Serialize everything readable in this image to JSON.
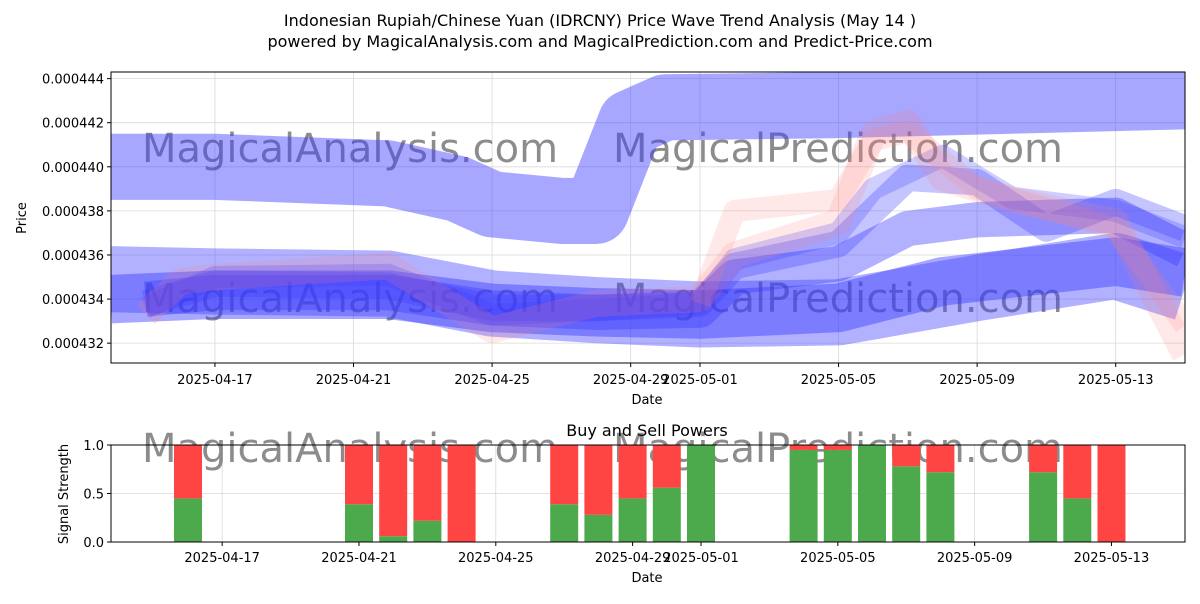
{
  "title_line1": "Indonesian Rupiah/Chinese Yuan (IDRCNY) Price Wave Trend Analysis (May 14 )",
  "title_line2": "powered by MagicalAnalysis.com and MagicalPrediction.com and Predict-Price.com",
  "watermarks": [
    "MagicalAnalysis.com",
    "MagicalPrediction.com"
  ],
  "colors": {
    "bands": "#3b3bff",
    "prediction": "#ff8080",
    "buy": "#4caa4c",
    "sell": "#ff4444",
    "grid": "#d9d9d9"
  },
  "chart_data": [
    {
      "type": "area",
      "title": "",
      "xlabel": "Date",
      "ylabel": "Price",
      "x_ticks": [
        "2025-04-17",
        "2025-04-21",
        "2025-04-25",
        "2025-04-29",
        "2025-05-01",
        "2025-05-05",
        "2025-05-09",
        "2025-05-13"
      ],
      "y_ticks": [
        "0.000432",
        "0.000434",
        "0.000436",
        "0.000438",
        "0.000440",
        "0.000442",
        "0.000444"
      ],
      "ylim": [
        0.0004311,
        0.0004443
      ],
      "xlim": [
        "2025-04-14",
        "2025-05-15"
      ],
      "grid": true,
      "series": [
        {
          "color": "blue",
          "opacity": 0.45,
          "width": 3e-06,
          "x": [
            "2025-04-14",
            "2025-04-17",
            "2025-04-22",
            "2025-04-24",
            "2025-04-25",
            "2025-04-27",
            "2025-04-28",
            "2025-04-29",
            "2025-04-30",
            "2025-05-05",
            "2025-05-15"
          ],
          "y": [
            0.00044,
            0.00044,
            0.0004397,
            0.000439,
            0.0004383,
            0.000438,
            0.000438,
            0.000442,
            0.0004427,
            0.0004428,
            0.0004432
          ]
        },
        {
          "color": "blue",
          "opacity": 0.4,
          "width": 3e-06,
          "x": [
            "2025-04-14",
            "2025-04-17",
            "2025-04-22",
            "2025-04-25",
            "2025-04-28",
            "2025-05-01",
            "2025-05-05",
            "2025-05-09",
            "2025-05-13",
            "2025-05-15"
          ],
          "y": [
            0.0004349,
            0.0004348,
            0.0004347,
            0.0004338,
            0.0004335,
            0.0004333,
            0.0004334,
            0.0004345,
            0.0004355,
            0.0004345
          ]
        },
        {
          "color": "blue",
          "opacity": 0.45,
          "width": 2.2e-06,
          "x": [
            "2025-04-14",
            "2025-04-17",
            "2025-04-22",
            "2025-04-25",
            "2025-04-28",
            "2025-05-01",
            "2025-05-05",
            "2025-05-08",
            "2025-05-13",
            "2025-05-15"
          ],
          "y": [
            0.000434,
            0.0004342,
            0.0004342,
            0.0004336,
            0.0004334,
            0.0004333,
            0.0004336,
            0.0004348,
            0.0004357,
            0.0004352
          ]
        },
        {
          "color": "blue",
          "opacity": 0.4,
          "width": 1.6e-06,
          "x": [
            "2025-04-15",
            "2025-04-17",
            "2025-04-22",
            "2025-04-25",
            "2025-04-28",
            "2025-05-01",
            "2025-05-02",
            "2025-05-05",
            "2025-05-07",
            "2025-05-09",
            "2025-05-13",
            "2025-05-15"
          ],
          "y": [
            0.000434,
            0.0004343,
            0.0004343,
            0.0004336,
            0.0004334,
            0.0004335,
            0.000435,
            0.0004356,
            0.0004372,
            0.0004376,
            0.0004378,
            0.0004362
          ]
        },
        {
          "color": "blue",
          "opacity": 0.3,
          "width": 1.2e-06,
          "x": [
            "2025-04-15",
            "2025-04-17",
            "2025-04-22",
            "2025-04-25",
            "2025-04-28",
            "2025-05-01",
            "2025-05-02",
            "2025-05-05",
            "2025-05-07",
            "2025-05-09",
            "2025-05-11",
            "2025-05-13",
            "2025-05-15"
          ],
          "y": [
            0.0004338,
            0.0004347,
            0.0004346,
            0.0004336,
            0.0004336,
            0.0004338,
            0.0004355,
            0.0004365,
            0.0004395,
            0.0004393,
            0.0004372,
            0.0004384,
            0.0004372
          ]
        },
        {
          "color": "blue",
          "opacity": 0.25,
          "width": 1e-06,
          "x": [
            "2025-04-15",
            "2025-04-17",
            "2025-04-22",
            "2025-04-25",
            "2025-04-28",
            "2025-05-01",
            "2025-05-02",
            "2025-05-05",
            "2025-05-06",
            "2025-05-08",
            "2025-05-10",
            "2025-05-13",
            "2025-05-15"
          ],
          "y": [
            0.0004336,
            0.000435,
            0.0004351,
            0.0004333,
            0.0004335,
            0.0004338,
            0.0004358,
            0.000437,
            0.000439,
            0.0004405,
            0.0004386,
            0.000438,
            0.0004368
          ]
        },
        {
          "color": "red",
          "opacity": 0.18,
          "width": 1.2e-06,
          "x": [
            "2025-04-15",
            "2025-04-16",
            "2025-04-17",
            "2025-04-22",
            "2025-04-25",
            "2025-04-28",
            "2025-05-01",
            "2025-05-02",
            "2025-05-05",
            "2025-05-06",
            "2025-05-07",
            "2025-05-08",
            "2025-05-10",
            "2025-05-13",
            "2025-05-15"
          ],
          "y": [
            0.0004333,
            0.0004348,
            0.000435,
            0.0004355,
            0.0004326,
            0.0004338,
            0.000434,
            0.000436,
            0.0004375,
            0.0004415,
            0.000442,
            0.0004395,
            0.0004385,
            0.0004375,
            0.0004315
          ]
        },
        {
          "color": "red",
          "opacity": 0.18,
          "width": 1e-06,
          "x": [
            "2025-05-01",
            "2025-05-02",
            "2025-05-05",
            "2025-05-06",
            "2025-05-07",
            "2025-05-09",
            "2025-05-13",
            "2025-05-15"
          ],
          "y": [
            0.0004338,
            0.000438,
            0.0004385,
            0.0004412,
            0.0004416,
            0.000439,
            0.0004372,
            0.0004328
          ]
        }
      ]
    },
    {
      "type": "bar",
      "title": "Buy and Sell Powers",
      "xlabel": "Date",
      "ylabel": "Signal Strength",
      "ylim": [
        0,
        1
      ],
      "y_ticks": [
        "0.0",
        "0.5",
        "1.0"
      ],
      "x_ticks": [
        "2025-04-17",
        "2025-04-21",
        "2025-04-25",
        "2025-04-29",
        "2025-05-01",
        "2025-05-05",
        "2025-05-09",
        "2025-05-13"
      ],
      "grid": true,
      "bars": [
        {
          "date": "2025-04-16",
          "buy": 0.45
        },
        {
          "date": "2025-04-21",
          "buy": 0.39
        },
        {
          "date": "2025-04-22",
          "buy": 0.06
        },
        {
          "date": "2025-04-23",
          "buy": 0.22
        },
        {
          "date": "2025-04-24",
          "buy": 0.0
        },
        {
          "date": "2025-04-27",
          "buy": 0.39
        },
        {
          "date": "2025-04-28",
          "buy": 0.28
        },
        {
          "date": "2025-04-29",
          "buy": 0.45
        },
        {
          "date": "2025-04-30",
          "buy": 0.56
        },
        {
          "date": "2025-05-01",
          "buy": 1.0
        },
        {
          "date": "2025-05-04",
          "buy": 0.95
        },
        {
          "date": "2025-05-05",
          "buy": 0.95
        },
        {
          "date": "2025-05-06",
          "buy": 1.0
        },
        {
          "date": "2025-05-07",
          "buy": 0.78
        },
        {
          "date": "2025-05-08",
          "buy": 0.72
        },
        {
          "date": "2025-05-11",
          "buy": 0.72
        },
        {
          "date": "2025-05-12",
          "buy": 0.45
        },
        {
          "date": "2025-05-13",
          "buy": 0.0
        }
      ]
    }
  ]
}
